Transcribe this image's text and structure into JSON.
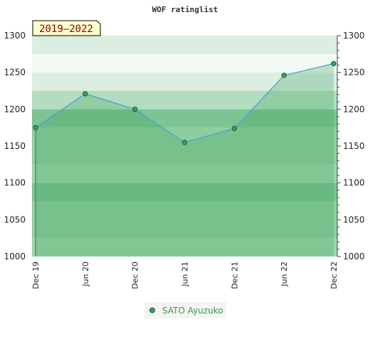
{
  "chart_data": {
    "type": "area",
    "title": "WOF ratinglist",
    "period_label": "2019–2022",
    "categories": [
      "Dec 19",
      "Jun 20",
      "Dec 20",
      "Jun 21",
      "Dec 21",
      "Jun 22",
      "Dec 22"
    ],
    "series": [
      {
        "name": "SATO Ayuzuko",
        "values": [
          1175,
          1221,
          1200,
          1155,
          1174,
          1246,
          1262
        ]
      }
    ],
    "ylim": [
      1000,
      1300
    ],
    "yticks": [
      1000,
      1050,
      1100,
      1150,
      1200,
      1250,
      1300
    ],
    "band_colors": [
      "#9ed4ab",
      "#8fcda0",
      "#8fcda0",
      "#7cc492",
      "#9ed4ab",
      "#8fcda0",
      "#8fcda0",
      "#7cc492",
      "#b3ddc0",
      "#dbeee1",
      "#f2f9f4",
      "#dbeee1",
      "#b3ddc0"
    ],
    "grid": false,
    "legend": "bottom-center",
    "colors": {
      "line": "#4f9fd8",
      "marker": "#3aa05a",
      "marker_edge": "#1f5f33",
      "badge_bg": "#ffffcc"
    }
  }
}
